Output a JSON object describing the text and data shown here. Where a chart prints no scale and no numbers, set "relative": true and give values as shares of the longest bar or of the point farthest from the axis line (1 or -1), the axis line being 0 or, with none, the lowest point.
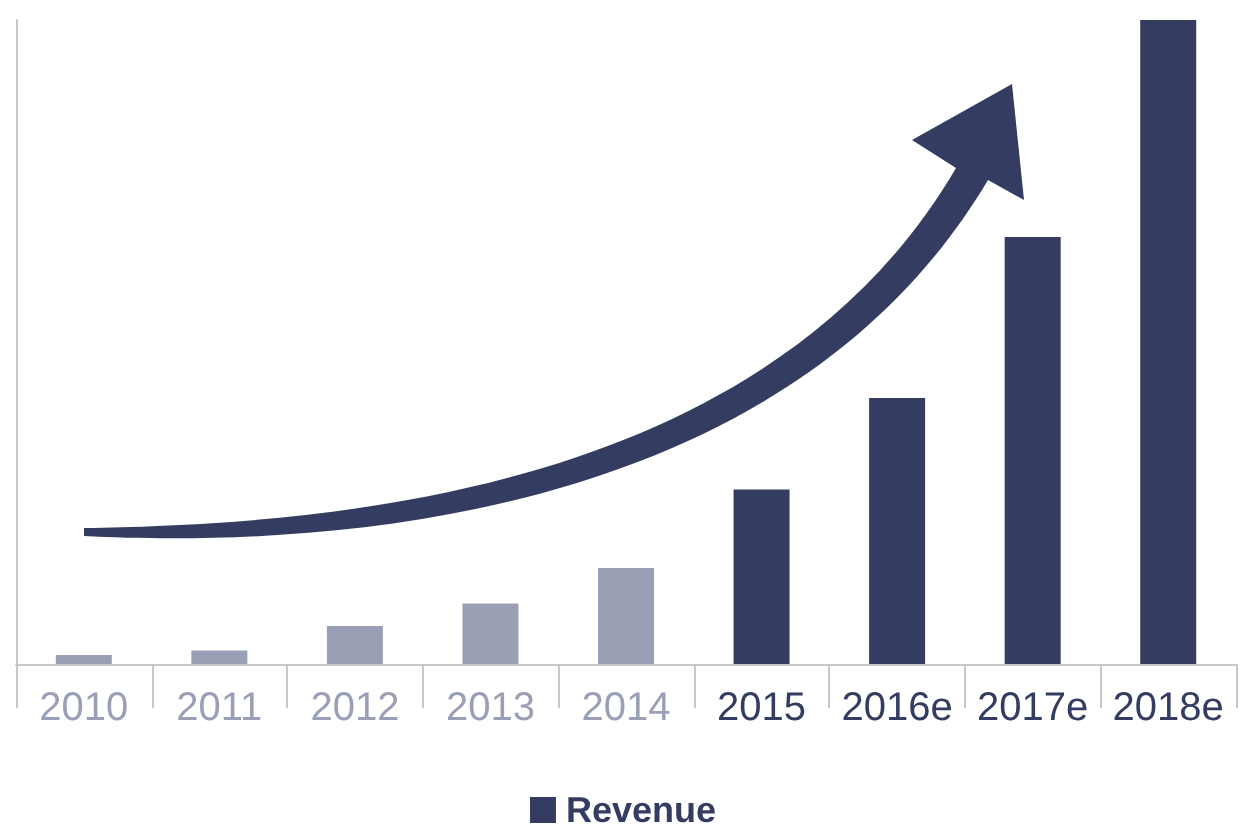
{
  "chart_data": {
    "type": "bar",
    "relative": true,
    "categories": [
      "2010",
      "2011",
      "2012",
      "2013",
      "2014",
      "2015",
      "2016e",
      "2017e",
      "2018e"
    ],
    "series": [
      {
        "name": "Revenue",
        "color": "#353c61",
        "values": [
          0.014,
          0.021,
          0.059,
          0.094,
          0.149,
          0.271,
          0.413,
          0.663,
          1
        ],
        "colors": [
          "#9a9fb5",
          "#9a9fb5",
          "#9a9fb5",
          "#9a9fb5",
          "#9a9fb5",
          "#353c61",
          "#353c61",
          "#353c61",
          "#353c61"
        ]
      }
    ],
    "legend": "bottom",
    "grid": false
  }
}
